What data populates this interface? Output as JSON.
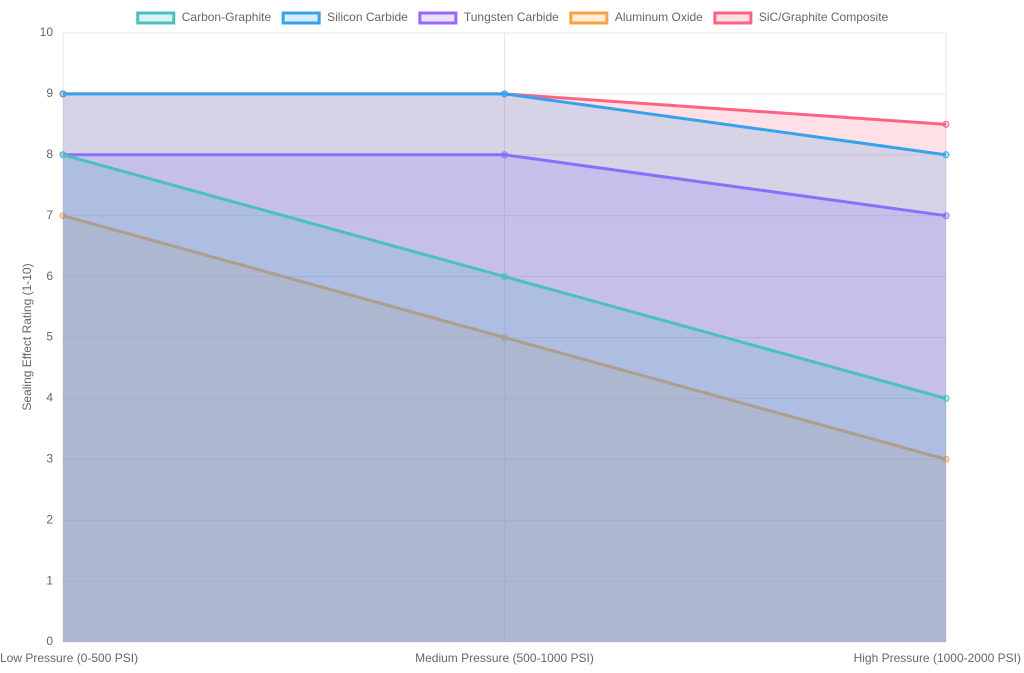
{
  "chart_data": {
    "type": "line",
    "fill": true,
    "grid": true,
    "legend": "top",
    "y_label": "Sealing Effect Rating (1-10)",
    "categories": [
      "Low Pressure (0-500 PSI)",
      "Medium Pressure (500-1000 PSI)",
      "High Pressure (1000-2000 PSI)"
    ],
    "series": [
      {
        "name": "Carbon-Graphite",
        "color": "#4bc0c0",
        "values": [
          8,
          6,
          4
        ]
      },
      {
        "name": "Silicon Carbide",
        "color": "#36a2eb",
        "values": [
          9,
          9,
          8
        ]
      },
      {
        "name": "Tungsten Carbide",
        "color": "#9966ff",
        "values": [
          8,
          8,
          7
        ]
      },
      {
        "name": "Aluminum Oxide",
        "color": "#ff9f40",
        "values": [
          7,
          5,
          3
        ]
      },
      {
        "name": "SiC/Graphite Composite",
        "color": "#ff6384",
        "values": [
          9,
          9,
          8.5
        ]
      }
    ],
    "ylim": [
      0,
      10
    ],
    "yticks": [
      0,
      1,
      2,
      3,
      4,
      5,
      6,
      7,
      8,
      9,
      10
    ]
  }
}
